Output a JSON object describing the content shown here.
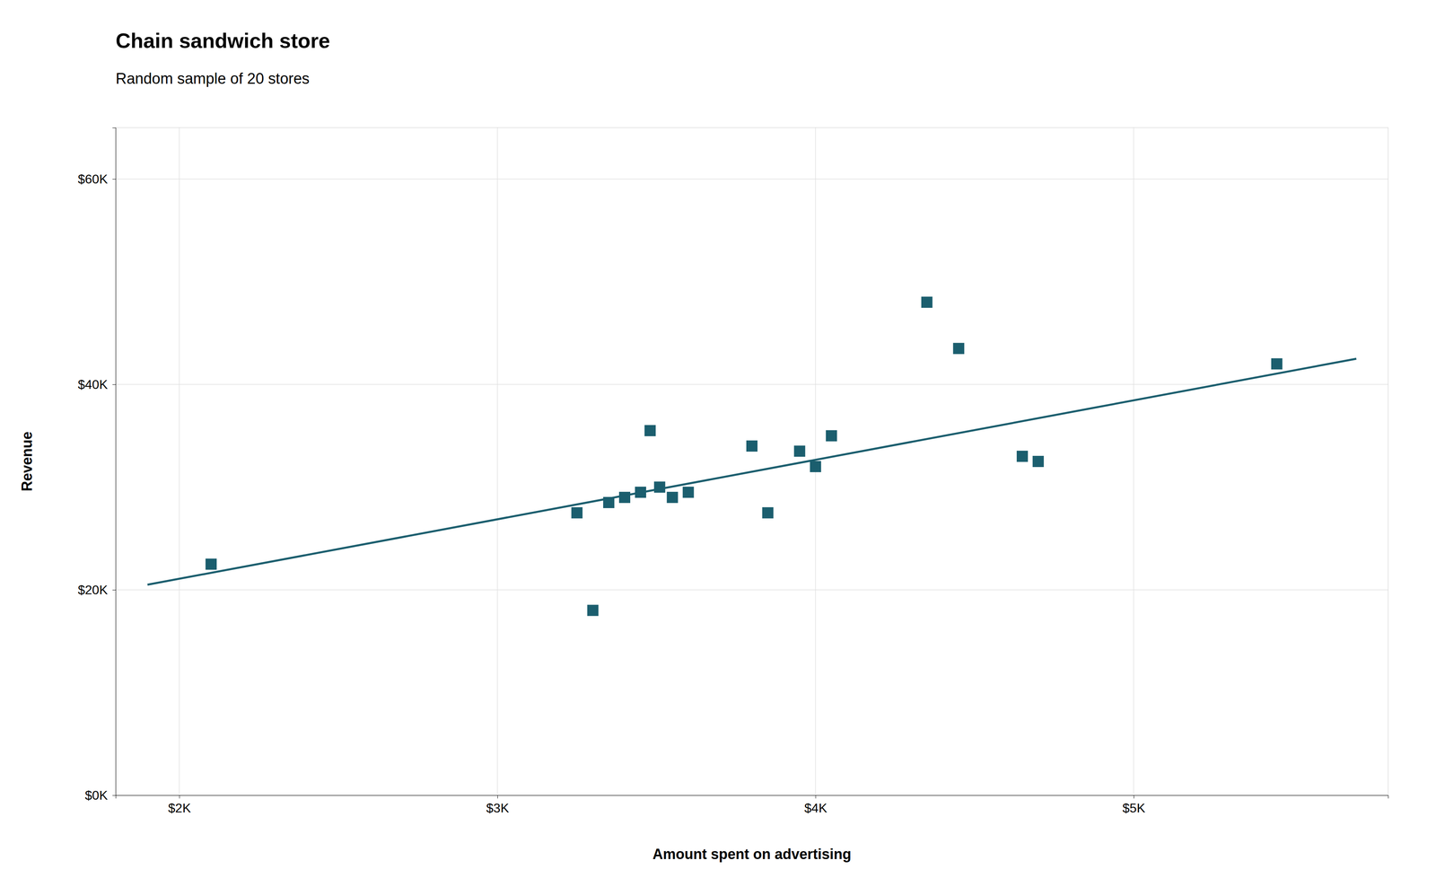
{
  "chart_data": {
    "type": "scatter",
    "title": "Chain sandwich store",
    "subtitle": "Random sample of 20 stores",
    "xlabel": "Amount spent on advertising",
    "ylabel": "Revenue",
    "series": [
      {
        "type": "scatter",
        "color": "#1b5e6e",
        "marker": "square",
        "x": [
          2100,
          3250,
          3300,
          3350,
          3400,
          3450,
          3480,
          3510,
          3550,
          3600,
          3800,
          3850,
          3950,
          4000,
          4050,
          4350,
          4450,
          4650,
          4700,
          5450
        ],
        "values": [
          22500,
          27500,
          18000,
          28500,
          29000,
          29500,
          35500,
          30000,
          29000,
          29500,
          34000,
          27500,
          33500,
          32000,
          35000,
          48000,
          43500,
          33000,
          32500,
          42000
        ]
      },
      {
        "type": "line",
        "color": "#1b5e6e",
        "line_style": "solid",
        "x": [
          1900,
          5700
        ],
        "values": [
          20500,
          42500
        ]
      }
    ],
    "xlim": [
      1800,
      5800
    ],
    "ylim": [
      0,
      65000
    ],
    "xticks": [
      {
        "value": 2000,
        "label": "$2K"
      },
      {
        "value": 3000,
        "label": "$3K"
      },
      {
        "value": 4000,
        "label": "$4K"
      },
      {
        "value": 5000,
        "label": "$5K"
      }
    ],
    "yticks": [
      {
        "value": 0,
        "label": "$0K"
      },
      {
        "value": 20000,
        "label": "$20K"
      },
      {
        "value": 40000,
        "label": "$40K"
      },
      {
        "value": 60000,
        "label": "$60K"
      }
    ],
    "grid": true
  }
}
